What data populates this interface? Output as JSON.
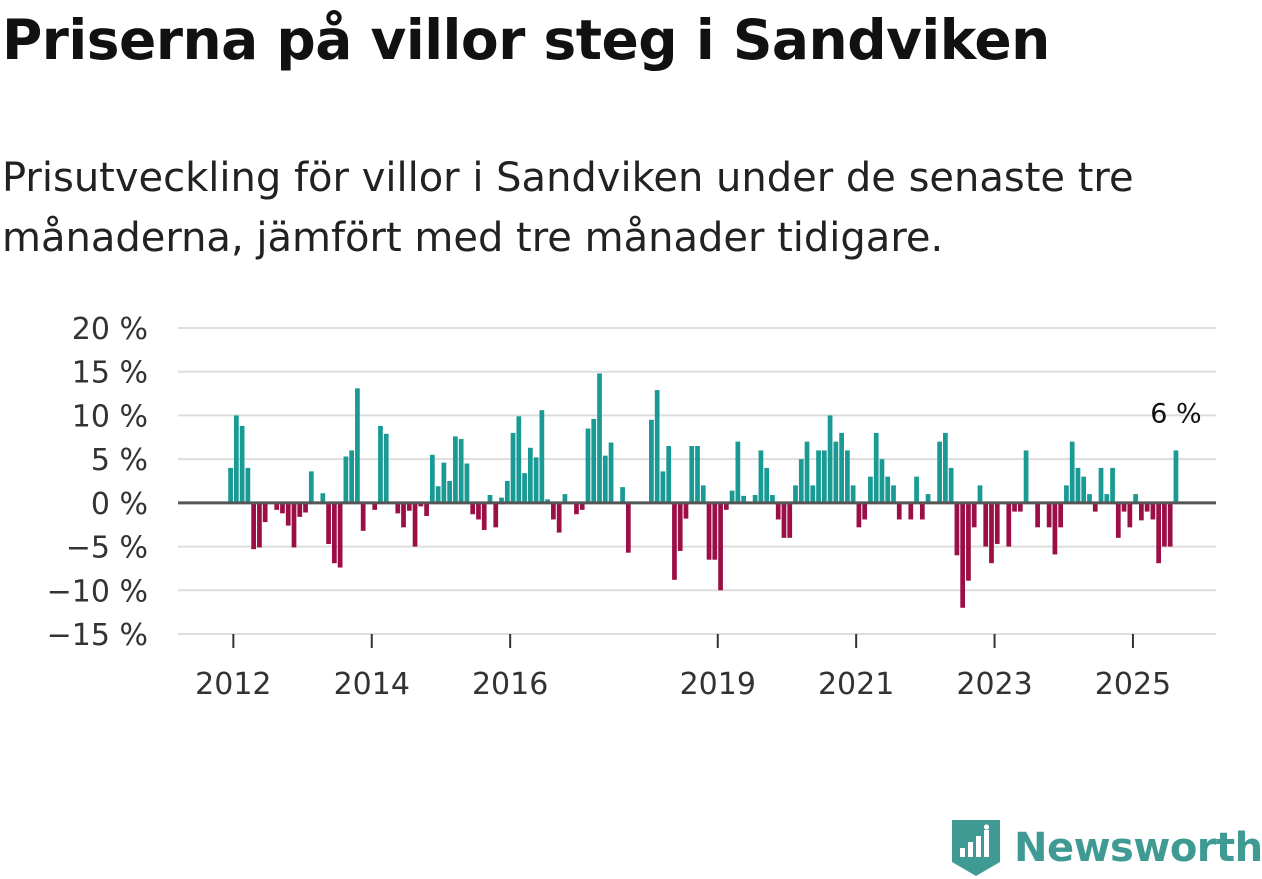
{
  "title": "Priserna på villor steg i Sandviken",
  "subtitle": "Prisutveckling för villor i Sandviken under de senaste tre månaderna, jämfört med tre månader tidigare.",
  "brand": "Newsworthy",
  "colors": {
    "positive": "#1a9a94",
    "negative": "#9b0f46",
    "grid": "#dddddd",
    "zero": "#555555"
  },
  "chart_data": {
    "type": "bar",
    "unit": "%",
    "ylim": [
      -15,
      20
    ],
    "yticks": [
      20,
      15,
      10,
      5,
      0,
      -5,
      -10,
      -15
    ],
    "ytick_labels": [
      "20 %",
      "15 %",
      "10 %",
      "5 %",
      "0 %",
      "−5 %",
      "−10 %",
      "−15 %"
    ],
    "xlabels": [
      {
        "label": "2012",
        "at": 2012.0
      },
      {
        "label": "2014",
        "at": 2014.0
      },
      {
        "label": "2016",
        "at": 2016.0
      },
      {
        "label": "2019",
        "at": 2019.0
      },
      {
        "label": "2021",
        "at": 2021.0
      },
      {
        "label": "2023",
        "at": 2023.0
      },
      {
        "label": "2025",
        "at": 2025.0
      }
    ],
    "series_start": 2011.96,
    "series_step": 0.0833,
    "values": [
      4,
      10,
      8.8,
      4,
      -5.3,
      -5.1,
      -2.2,
      0,
      -0.8,
      -1.2,
      -2.6,
      -5.1,
      -1.6,
      -1.1,
      3.6,
      0,
      1.1,
      -4.7,
      -6.9,
      -7.4,
      5.3,
      6,
      13.1,
      -3.2,
      0,
      -0.8,
      8.8,
      7.9,
      0,
      -1.2,
      -2.8,
      -0.9,
      -5,
      -0.4,
      -1.5,
      5.5,
      1.9,
      4.6,
      2.5,
      7.6,
      7.3,
      4.5,
      -1.3,
      -1.9,
      -3.1,
      0.9,
      -2.8,
      0.6,
      2.5,
      8,
      9.9,
      3.4,
      6.3,
      5.2,
      10.6,
      0.4,
      -1.9,
      -3.4,
      1,
      0,
      -1.3,
      -0.8,
      8.5,
      9.6,
      14.8,
      5.4,
      6.9,
      0,
      1.8,
      -5.7,
      0,
      0,
      0,
      9.5,
      12.9,
      3.6,
      6.5,
      -8.8,
      -5.5,
      -1.8,
      6.5,
      6.5,
      2,
      -6.5,
      -6.5,
      -10,
      -0.8,
      1.4,
      7,
      0.8,
      0,
      0.9,
      6,
      4,
      0.9,
      -1.9,
      -4,
      -4,
      2,
      5,
      7,
      2,
      6,
      6,
      10,
      7,
      8,
      6,
      2,
      -2.8,
      -1.9,
      3,
      8,
      5,
      3,
      2,
      -1.9,
      0,
      -1.9,
      3,
      -1.9,
      1,
      0,
      7,
      8,
      4,
      -6,
      -12,
      -8.9,
      -2.8,
      2,
      -5,
      -6.9,
      -4.7,
      0,
      -5,
      -1,
      -1,
      6,
      0,
      -2.8,
      0,
      -2.8,
      -5.9,
      -2.8,
      2,
      7,
      4,
      3,
      1,
      -1,
      4,
      1,
      4,
      -4,
      -1,
      -2.8,
      1,
      -2,
      -1,
      -1.9,
      -6.9,
      -5,
      -5,
      6
    ],
    "annotations": [
      {
        "text": "6 %"
      }
    ]
  }
}
